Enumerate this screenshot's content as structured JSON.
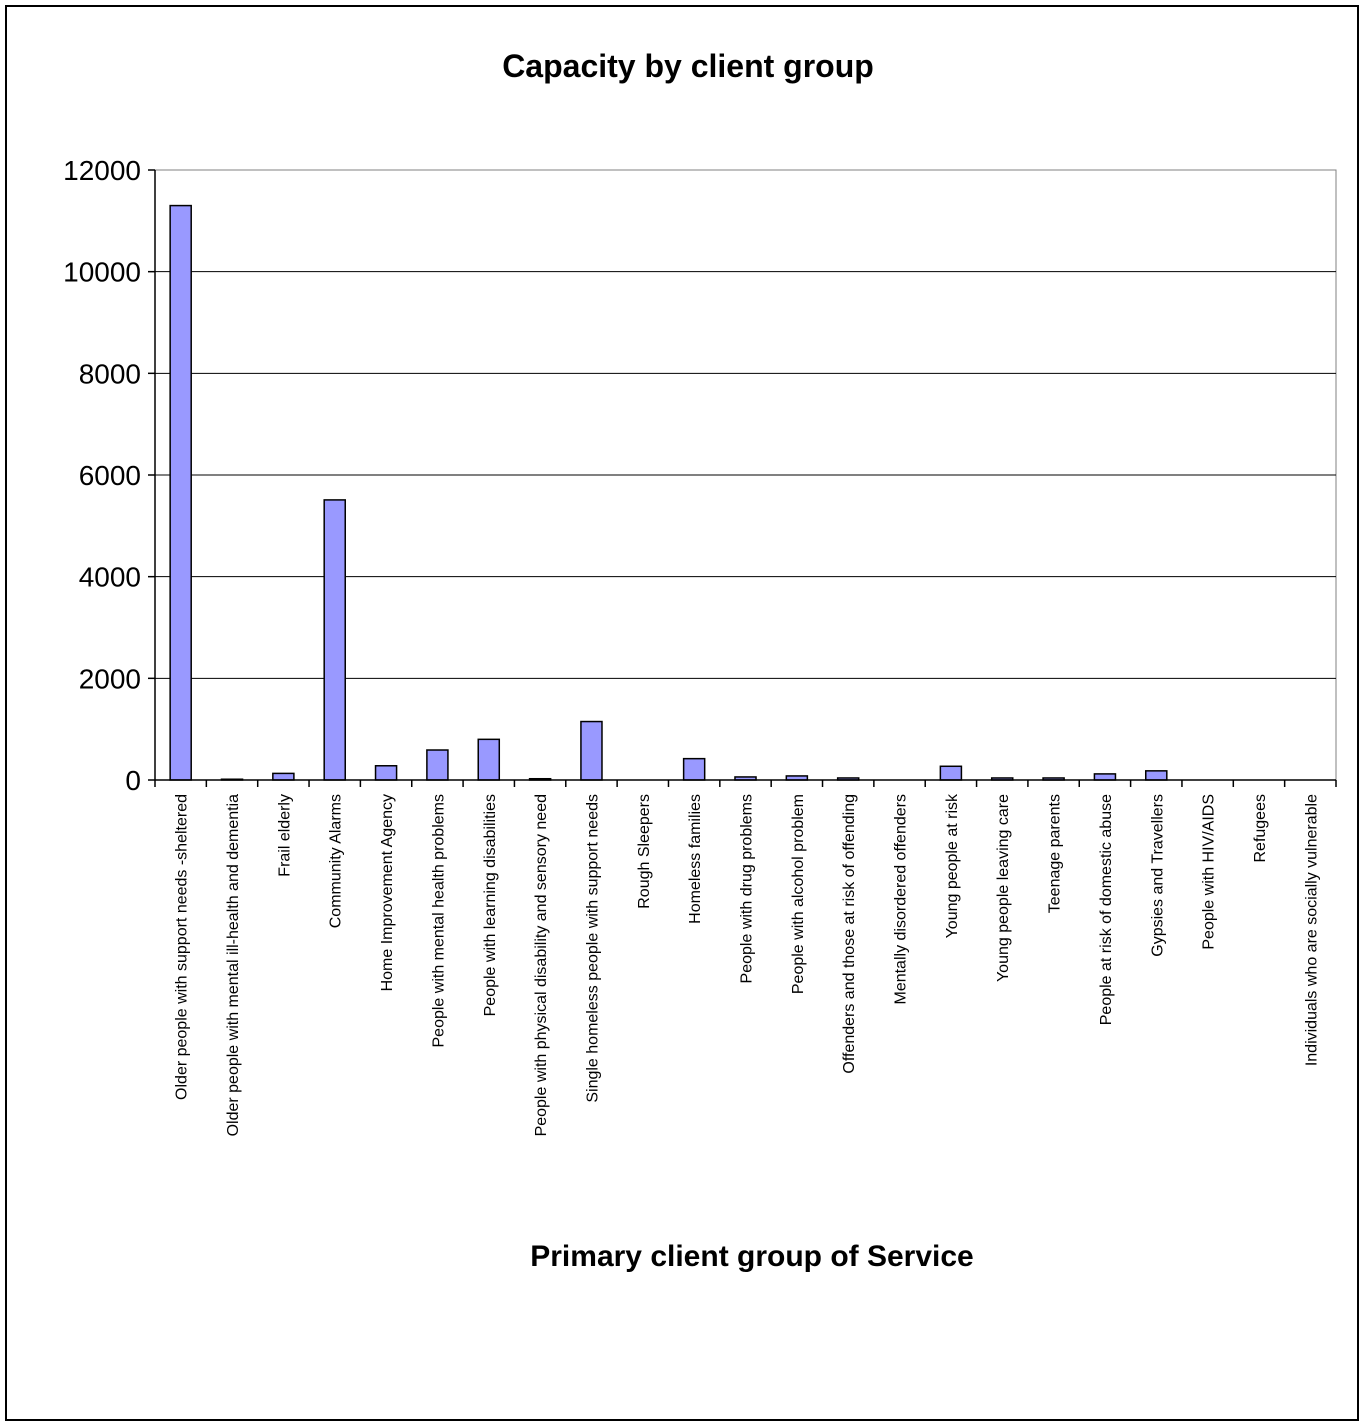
{
  "chart_data": {
    "type": "bar",
    "title": "Capacity by client group",
    "xlabel": "Primary client group of Service",
    "ylabel": "",
    "ylim": [
      0,
      12000
    ],
    "yticks": [
      0,
      2000,
      4000,
      6000,
      8000,
      10000,
      12000
    ],
    "grid": true,
    "legend": "none",
    "bar_color": "#9999ff",
    "bar_edge_color": "#000000",
    "categories": [
      "Older people with support needs -sheltered",
      "Older people with mental ill-health and dementia",
      "Frail elderly",
      "Community Alarms",
      "Home Improvement Agency",
      "People with mental health problems",
      "People with learning disabilities",
      "People with physical disability and sensory need",
      "Single homeless people with support needs",
      "Rough Sleepers",
      "Homeless families",
      "People with drug problems",
      "People with alcohol problem",
      "Offenders and those at risk of offending",
      "Mentally disordered offenders",
      "Young people at risk",
      "Young people leaving care",
      "Teenage parents",
      "People at risk of domestic abuse",
      "Gypsies and Travellers",
      "People with HIV/AIDS",
      "Refugees",
      "Individuals who are socially vulnerable"
    ],
    "values": [
      11300,
      15,
      130,
      5510,
      280,
      590,
      800,
      25,
      1150,
      0,
      420,
      60,
      80,
      40,
      0,
      270,
      40,
      40,
      120,
      180,
      0,
      0,
      0
    ]
  }
}
